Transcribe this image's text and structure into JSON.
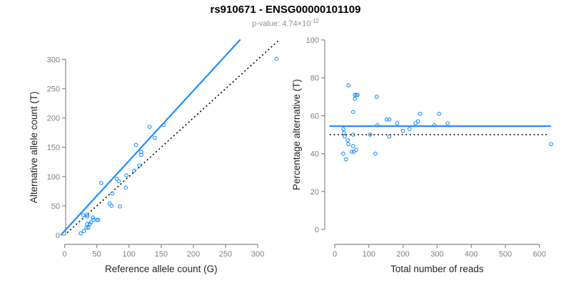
{
  "header": {
    "title": "rs910671 - ENSG00000101109",
    "subtitle_prefix": "p-value: 4.74×10",
    "subtitle_exponent": "-12"
  },
  "colors": {
    "accent_blue": "#1E90FF",
    "dotted_black": "#000000",
    "axis_gray": "#898989",
    "tick_label_gray": "#7f7f7f",
    "axis_title_dark": "#262626",
    "subtitle_gray": "#8f8f8f"
  },
  "chart_data": [
    {
      "panel": "left",
      "type": "scatter",
      "title": "",
      "xlabel": "Reference allele count (G)",
      "ylabel": "Alternative allele count (T)",
      "xlim": [
        0,
        335
      ],
      "ylim": [
        0,
        340
      ],
      "xticks": [
        0,
        50,
        100,
        150,
        200,
        250,
        300
      ],
      "yticks": [
        0,
        50,
        100,
        150,
        200,
        250,
        300
      ],
      "grid": false,
      "legend": null,
      "marker": "open-circle",
      "points": [
        [
          329,
          301
        ],
        [
          154,
          188
        ],
        [
          132,
          185
        ],
        [
          140,
          166
        ],
        [
          111,
          154
        ],
        [
          119,
          142
        ],
        [
          119,
          137
        ],
        [
          116,
          119
        ],
        [
          108,
          110
        ],
        [
          96,
          102
        ],
        [
          95,
          81
        ],
        [
          81,
          96
        ],
        [
          84,
          92
        ],
        [
          57,
          89
        ],
        [
          74,
          71
        ],
        [
          70,
          54
        ],
        [
          73,
          50
        ],
        [
          86,
          49
        ],
        [
          29,
          34
        ],
        [
          35,
          35
        ],
        [
          35,
          32
        ],
        [
          44,
          30
        ],
        [
          45,
          26
        ],
        [
          50,
          26
        ],
        [
          52,
          26
        ],
        [
          41,
          22
        ],
        [
          35,
          19
        ],
        [
          39,
          19
        ],
        [
          34,
          13
        ],
        [
          37,
          13
        ],
        [
          30,
          7
        ],
        [
          25,
          3
        ]
      ],
      "lines": [
        {
          "name": "fit-line",
          "label": "regression fit (slope ~1.2)",
          "style": "solid",
          "color": "#1E90FF",
          "x1": -6,
          "y1": 0,
          "x2": 273,
          "y2": 334
        },
        {
          "name": "identity-line",
          "label": "y = x",
          "style": "dotted",
          "color": "#000000",
          "x1": 4,
          "y1": 4,
          "x2": 332,
          "y2": 332
        }
      ]
    },
    {
      "panel": "right",
      "type": "scatter",
      "title": "",
      "xlabel": "Total number of reads",
      "ylabel": "Percentage alternative (T)",
      "xlim": [
        0,
        640
      ],
      "ylim": [
        0,
        100
      ],
      "xticks": [
        0,
        100,
        200,
        300,
        400,
        500,
        600
      ],
      "yticks": [
        0,
        20,
        40,
        60,
        80,
        100
      ],
      "grid": false,
      "legend": null,
      "marker": "open-circle",
      "points": [
        [
          40,
          76
        ],
        [
          59,
          71
        ],
        [
          63,
          71
        ],
        [
          67,
          71
        ],
        [
          59,
          69
        ],
        [
          123,
          70
        ],
        [
          54,
          62
        ],
        [
          250,
          61
        ],
        [
          306,
          61
        ],
        [
          152,
          58
        ],
        [
          160,
          58
        ],
        [
          244,
          57
        ],
        [
          237,
          56
        ],
        [
          331,
          56
        ],
        [
          183,
          56
        ],
        [
          292,
          55
        ],
        [
          125,
          55
        ],
        [
          219,
          53
        ],
        [
          25,
          53
        ],
        [
          200,
          52
        ],
        [
          27,
          51
        ],
        [
          104,
          50
        ],
        [
          54,
          50
        ],
        [
          29,
          49
        ],
        [
          160,
          49
        ],
        [
          38,
          47
        ],
        [
          40,
          45
        ],
        [
          54,
          44
        ],
        [
          63,
          42
        ],
        [
          50,
          41
        ],
        [
          56,
          41
        ],
        [
          25,
          40
        ],
        [
          119,
          40
        ],
        [
          33,
          37
        ],
        [
          634,
          45
        ]
      ],
      "lines": [
        {
          "name": "mean-line",
          "label": "mean percentage ~54.5%",
          "style": "solid",
          "color": "#1E90FF",
          "x1": -15,
          "y1": 54.5,
          "x2": 634,
          "y2": 54.5
        },
        {
          "name": "expected-line",
          "label": "expected 50%",
          "style": "dotted",
          "color": "#000000",
          "x1": -15,
          "y1": 50,
          "x2": 625,
          "y2": 50
        }
      ]
    }
  ]
}
